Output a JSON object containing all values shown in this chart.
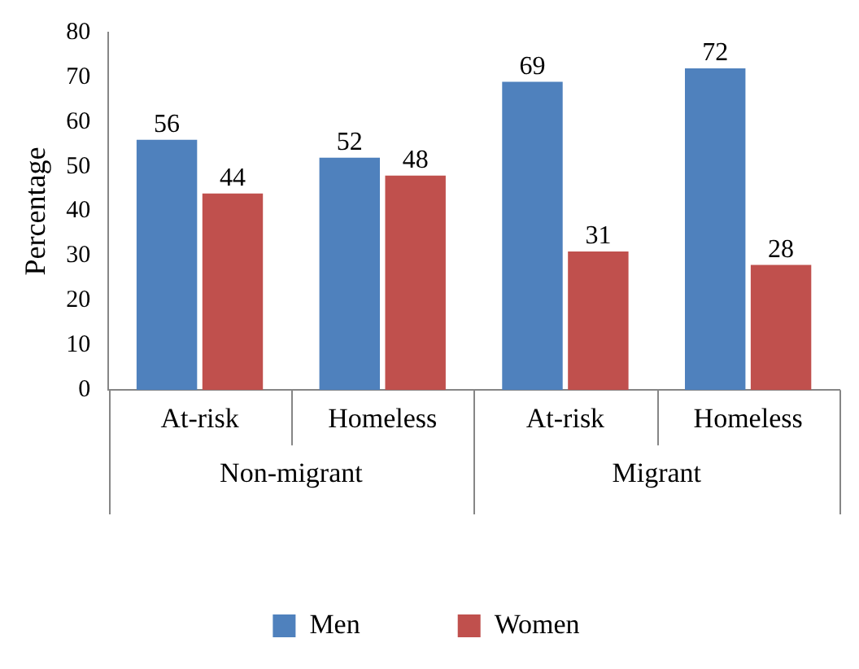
{
  "chart_data": {
    "type": "bar",
    "ylabel": "Percentage",
    "categories": [
      "At-risk",
      "Homeless",
      "At-risk",
      "Homeless"
    ],
    "series": [
      {
        "name": "Men",
        "color": "#4f81bd",
        "values": [
          56,
          52,
          69,
          72
        ]
      },
      {
        "name": "Women",
        "color": "#c0504d",
        "values": [
          44,
          48,
          31,
          28
        ]
      }
    ],
    "annotations": [
      "Non-migrant",
      "Migrant"
    ],
    "ylim": [
      0,
      80
    ],
    "yticks": [
      0,
      10,
      20,
      30,
      40,
      50,
      60,
      70,
      80
    ],
    "grid": false,
    "legend": "bottom",
    "data_labels": true
  }
}
